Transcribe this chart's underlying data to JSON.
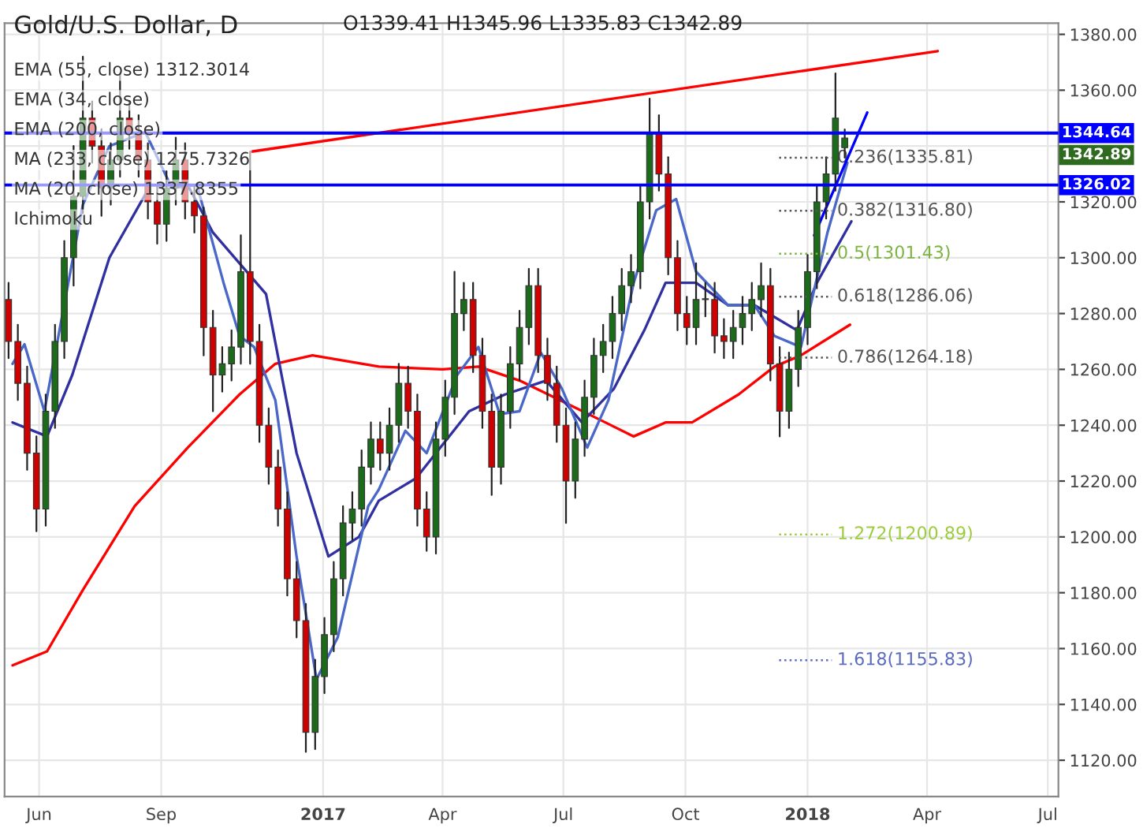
{
  "chart_data": {
    "type": "candlestick",
    "title": "Gold/U.S. Dollar, D",
    "x": [
      "2016-05-09",
      "2016-05-16",
      "2016-05-23",
      "2016-05-30",
      "2016-06-06",
      "2016-06-13",
      "2016-06-20",
      "2016-06-27",
      "2016-07-04",
      "2016-07-11",
      "2016-07-18",
      "2016-07-25",
      "2016-08-01",
      "2016-08-08",
      "2016-08-15",
      "2016-08-22",
      "2016-08-29",
      "2016-09-05",
      "2016-09-12",
      "2016-09-19",
      "2016-09-26",
      "2016-10-03",
      "2016-10-10",
      "2016-10-17",
      "2016-10-24",
      "2016-10-31",
      "2016-11-07",
      "2016-11-14",
      "2016-11-21",
      "2016-11-28",
      "2016-12-05",
      "2016-12-12",
      "2016-12-19",
      "2016-12-26",
      "2017-01-02",
      "2017-01-09",
      "2017-01-16",
      "2017-01-23",
      "2017-01-30",
      "2017-02-06",
      "2017-02-13",
      "2017-02-20",
      "2017-02-27",
      "2017-03-06",
      "2017-03-13",
      "2017-03-20",
      "2017-03-27",
      "2017-04-03",
      "2017-04-10",
      "2017-04-17",
      "2017-04-24",
      "2017-05-01",
      "2017-05-08",
      "2017-05-15",
      "2017-05-22",
      "2017-05-29",
      "2017-06-05",
      "2017-06-12",
      "2017-06-19",
      "2017-06-26",
      "2017-07-03",
      "2017-07-10",
      "2017-07-17",
      "2017-07-24",
      "2017-07-31",
      "2017-08-07",
      "2017-08-14",
      "2017-08-21",
      "2017-08-28",
      "2017-09-04",
      "2017-09-11",
      "2017-09-18",
      "2017-09-25",
      "2017-10-02",
      "2017-10-09",
      "2017-10-16",
      "2017-10-23",
      "2017-10-30",
      "2017-11-06",
      "2017-11-13",
      "2017-11-20",
      "2017-11-27",
      "2017-12-04",
      "2017-12-11",
      "2017-12-18",
      "2017-12-25",
      "2018-01-01",
      "2018-01-08",
      "2018-01-15",
      "2018-01-22",
      "2018-01-29"
    ],
    "ohlc": [
      [
        1285,
        1291,
        1264,
        1270
      ],
      [
        1270,
        1276,
        1249,
        1255
      ],
      [
        1255,
        1261,
        1224,
        1230
      ],
      [
        1230,
        1236,
        1202,
        1210
      ],
      [
        1210,
        1251,
        1204,
        1245
      ],
      [
        1245,
        1276,
        1239,
        1270
      ],
      [
        1270,
        1306,
        1264,
        1300
      ],
      [
        1300,
        1340,
        1290,
        1322
      ],
      [
        1322,
        1372,
        1316,
        1350
      ],
      [
        1350,
        1356,
        1334,
        1340
      ],
      [
        1340,
        1346,
        1315,
        1325
      ],
      [
        1325,
        1341,
        1319,
        1335
      ],
      [
        1335,
        1366,
        1329,
        1350
      ],
      [
        1350,
        1356,
        1339,
        1345
      ],
      [
        1345,
        1351,
        1329,
        1335
      ],
      [
        1335,
        1341,
        1314,
        1320
      ],
      [
        1320,
        1326,
        1305,
        1312
      ],
      [
        1312,
        1331,
        1306,
        1325
      ],
      [
        1325,
        1343,
        1319,
        1335
      ],
      [
        1335,
        1341,
        1314,
        1320
      ],
      [
        1320,
        1326,
        1309,
        1315
      ],
      [
        1315,
        1318,
        1265,
        1275
      ],
      [
        1275,
        1281,
        1245,
        1258
      ],
      [
        1258,
        1268,
        1252,
        1262
      ],
      [
        1262,
        1274,
        1256,
        1268
      ],
      [
        1268,
        1308,
        1262,
        1295
      ],
      [
        1295,
        1338,
        1262,
        1270
      ],
      [
        1270,
        1276,
        1234,
        1240
      ],
      [
        1240,
        1246,
        1219,
        1225
      ],
      [
        1225,
        1231,
        1204,
        1210
      ],
      [
        1210,
        1216,
        1179,
        1185
      ],
      [
        1185,
        1191,
        1164,
        1170
      ],
      [
        1170,
        1176,
        1123,
        1130
      ],
      [
        1130,
        1156,
        1124,
        1150
      ],
      [
        1150,
        1171,
        1144,
        1165
      ],
      [
        1165,
        1191,
        1159,
        1185
      ],
      [
        1185,
        1211,
        1179,
        1205
      ],
      [
        1205,
        1216,
        1199,
        1210
      ],
      [
        1210,
        1231,
        1204,
        1225
      ],
      [
        1225,
        1241,
        1219,
        1235
      ],
      [
        1235,
        1241,
        1224,
        1230
      ],
      [
        1230,
        1246,
        1224,
        1240
      ],
      [
        1240,
        1262,
        1234,
        1255
      ],
      [
        1255,
        1261,
        1239,
        1245
      ],
      [
        1245,
        1251,
        1204,
        1210
      ],
      [
        1210,
        1216,
        1195,
        1200
      ],
      [
        1200,
        1241,
        1194,
        1235
      ],
      [
        1235,
        1256,
        1229,
        1250
      ],
      [
        1250,
        1295,
        1244,
        1280
      ],
      [
        1280,
        1291,
        1274,
        1285
      ],
      [
        1285,
        1291,
        1259,
        1265
      ],
      [
        1265,
        1271,
        1239,
        1245
      ],
      [
        1245,
        1251,
        1215,
        1225
      ],
      [
        1225,
        1251,
        1219,
        1245
      ],
      [
        1245,
        1268,
        1239,
        1262
      ],
      [
        1262,
        1281,
        1256,
        1275
      ],
      [
        1275,
        1296,
        1269,
        1290
      ],
      [
        1290,
        1296,
        1259,
        1265
      ],
      [
        1265,
        1271,
        1249,
        1255
      ],
      [
        1255,
        1261,
        1234,
        1240
      ],
      [
        1240,
        1246,
        1205,
        1220
      ],
      [
        1220,
        1241,
        1214,
        1235
      ],
      [
        1235,
        1256,
        1229,
        1250
      ],
      [
        1250,
        1271,
        1244,
        1265
      ],
      [
        1265,
        1276,
        1259,
        1270
      ],
      [
        1270,
        1286,
        1264,
        1280
      ],
      [
        1280,
        1296,
        1274,
        1290
      ],
      [
        1290,
        1301,
        1284,
        1295
      ],
      [
        1295,
        1326,
        1289,
        1320
      ],
      [
        1320,
        1357,
        1314,
        1345
      ],
      [
        1345,
        1351,
        1324,
        1330
      ],
      [
        1330,
        1336,
        1294,
        1300
      ],
      [
        1300,
        1306,
        1274,
        1280
      ],
      [
        1280,
        1286,
        1269,
        1275
      ],
      [
        1275,
        1298,
        1269,
        1285
      ],
      [
        1285,
        1291,
        1279,
        1285
      ],
      [
        1285,
        1291,
        1266,
        1272
      ],
      [
        1272,
        1278,
        1264,
        1270
      ],
      [
        1270,
        1281,
        1264,
        1275
      ],
      [
        1275,
        1286,
        1269,
        1280
      ],
      [
        1280,
        1291,
        1274,
        1285
      ],
      [
        1285,
        1298,
        1279,
        1290
      ],
      [
        1290,
        1296,
        1256,
        1262
      ],
      [
        1262,
        1268,
        1236,
        1245
      ],
      [
        1245,
        1266,
        1239,
        1260
      ],
      [
        1260,
        1281,
        1254,
        1275
      ],
      [
        1275,
        1301,
        1269,
        1295
      ],
      [
        1295,
        1326,
        1289,
        1320
      ],
      [
        1320,
        1336,
        1314,
        1330
      ],
      [
        1330,
        1366,
        1324,
        1350
      ],
      [
        1339.41,
        1345.96,
        1335.83,
        1342.89
      ]
    ],
    "series": [
      {
        "type": "line",
        "color": "#ff0000",
        "x": [
          "2016-05-12",
          "2016-06-07",
          "2016-07-04",
          "2016-08-12",
          "2016-09-21",
          "2016-10-30",
          "2016-11-26",
          "2016-12-24",
          "2017-02-12",
          "2017-04-01",
          "2017-04-28",
          "2017-05-29",
          "2017-07-07",
          "2017-08-23",
          "2017-09-16",
          "2017-10-06",
          "2017-11-10",
          "2017-12-07",
          "2017-12-27",
          "2018-02-02"
        ],
        "values": [
          1154,
          1159,
          1181,
          1211,
          1232,
          1251,
          1262,
          1265,
          1261,
          1260,
          1261,
          1256,
          1247,
          1236,
          1241,
          1241,
          1251,
          1261,
          1265,
          1276
        ]
      },
      {
        "type": "line",
        "color": "#3030a0",
        "x": [
          "2016-05-12",
          "2016-06-07",
          "2016-06-26",
          "2016-07-24",
          "2016-08-24",
          "2016-09-21",
          "2016-10-10",
          "2016-10-30",
          "2016-11-19",
          "2016-12-12",
          "2017-01-05",
          "2017-01-28",
          "2017-02-12",
          "2017-03-12",
          "2017-04-21",
          "2017-05-18",
          "2017-06-18",
          "2017-07-15",
          "2017-08-08",
          "2017-08-31",
          "2017-09-16",
          "2017-10-09",
          "2017-11-02",
          "2017-11-22",
          "2017-12-24",
          "2018-01-08",
          "2018-02-03"
        ],
        "values": [
          1241,
          1236,
          1258,
          1300,
          1326,
          1326,
          1309,
          1298,
          1287,
          1230,
          1193,
          1200,
          1213,
          1221,
          1245,
          1251,
          1256,
          1241,
          1253,
          1274,
          1291,
          1291,
          1283,
          1283,
          1274,
          1291,
          1313
        ]
      },
      {
        "type": "line",
        "color": "#4a68c8",
        "x": [
          "2016-05-12",
          "2016-05-21",
          "2016-06-05",
          "2016-07-04",
          "2016-07-24",
          "2016-08-20",
          "2016-09-09",
          "2016-09-28",
          "2016-10-18",
          "2016-10-30",
          "2016-11-10",
          "2016-11-26",
          "2016-12-12",
          "2016-12-27",
          "2017-01-12",
          "2017-02-04",
          "2017-02-12",
          "2017-03-04",
          "2017-03-20",
          "2017-04-12",
          "2017-04-28",
          "2017-05-14",
          "2017-05-29",
          "2017-06-14",
          "2017-06-30",
          "2017-07-19",
          "2017-08-04",
          "2017-08-23",
          "2017-09-09",
          "2017-09-24",
          "2017-10-09",
          "2017-11-02",
          "2017-11-22",
          "2017-12-07",
          "2017-12-27",
          "2018-01-16",
          "2018-01-31"
        ],
        "values": [
          1262,
          1269,
          1245,
          1319,
          1340,
          1345,
          1325,
          1326,
          1291,
          1272,
          1268,
          1249,
          1193,
          1149,
          1164,
          1211,
          1217,
          1238,
          1230,
          1258,
          1268,
          1244,
          1245,
          1266,
          1253,
          1232,
          1249,
          1291,
          1317,
          1321,
          1295,
          1283,
          1283,
          1272,
          1268,
          1309,
          1334
        ]
      },
      {
        "type": "line",
        "color": "#ff0000",
        "x": [
          "2016-11-08",
          "2018-04-09"
        ],
        "values": [
          1338,
          1374
        ]
      },
      {
        "type": "line",
        "color": "#0000ff",
        "x": [
          "2018-01-06",
          "2018-02-15"
        ],
        "values": [
          1308,
          1352
        ]
      }
    ],
    "ref_lines": [
      {
        "axis": "y",
        "value": 1344.64,
        "label": "1344.64",
        "color": "#0000ff"
      },
      {
        "axis": "y",
        "value": 1326.02,
        "label": "1326.02",
        "color": "#0000ff"
      },
      {
        "axis": "y",
        "value": 1335.81,
        "label": "0.236(1335.81)",
        "color": "#555555",
        "line_style": "dotted"
      },
      {
        "axis": "y",
        "value": 1316.8,
        "label": "0.382(1316.80)",
        "color": "#555555",
        "line_style": "dotted"
      },
      {
        "axis": "y",
        "value": 1301.43,
        "label": "0.5(1301.43)",
        "color": "#7cb342",
        "line_style": "dotted"
      },
      {
        "axis": "y",
        "value": 1286.06,
        "label": "0.618(1286.06)",
        "color": "#555555",
        "line_style": "dotted"
      },
      {
        "axis": "y",
        "value": 1264.18,
        "label": "0.786(1264.18)",
        "color": "#555555",
        "line_style": "dotted"
      },
      {
        "axis": "y",
        "value": 1200.89,
        "label": "1.272(1200.89)",
        "color": "#9ccc3c",
        "line_style": "dotted"
      },
      {
        "axis": "y",
        "value": 1155.83,
        "label": "1.618(1155.83)",
        "color": "#5c6bc0",
        "line_style": "dotted"
      }
    ],
    "annotations": [
      "O1339.41 H1345.96 L1335.83 C1342.89",
      "EMA (55, close) 1312.3014",
      "EMA (34, close)",
      "EMA (200, close)",
      "MA (233, close) 1275.7326",
      "MA (20, close) 1337.8355",
      "Ichimoku",
      "1342.89"
    ],
    "xlim": [
      "2016-05-06",
      "2018-07-09"
    ],
    "xticks": [
      {
        "value": "2016-06-01",
        "label": "Jun"
      },
      {
        "value": "2016-09-01",
        "label": "Sep"
      },
      {
        "value": "2017-01-01",
        "label": "2017"
      },
      {
        "value": "2017-04-01",
        "label": "Apr"
      },
      {
        "value": "2017-07-01",
        "label": "Jul"
      },
      {
        "value": "2017-10-01",
        "label": "Oct"
      },
      {
        "value": "2018-01-01",
        "label": "2018"
      },
      {
        "value": "2018-04-01",
        "label": "Apr"
      },
      {
        "value": "2018-07-01",
        "label": "Jul"
      }
    ],
    "ylim": [
      1107,
      1384
    ],
    "yticks": [
      {
        "value": 1120,
        "label": "1120.00"
      },
      {
        "value": 1140,
        "label": "1140.00"
      },
      {
        "value": 1160,
        "label": "1160.00"
      },
      {
        "value": 1180,
        "label": "1180.00"
      },
      {
        "value": 1200,
        "label": "1200.00"
      },
      {
        "value": 1220,
        "label": "1220.00"
      },
      {
        "value": 1240,
        "label": "1240.00"
      },
      {
        "value": 1260,
        "label": "1260.00"
      },
      {
        "value": 1280,
        "label": "1280.00"
      },
      {
        "value": 1300,
        "label": "1300.00"
      },
      {
        "value": 1320,
        "label": "1320.00"
      },
      {
        "value": 1340,
        "label": null
      },
      {
        "value": 1360,
        "label": "1360.00"
      },
      {
        "value": 1380,
        "label": "1380.00"
      }
    ],
    "grid": true
  }
}
